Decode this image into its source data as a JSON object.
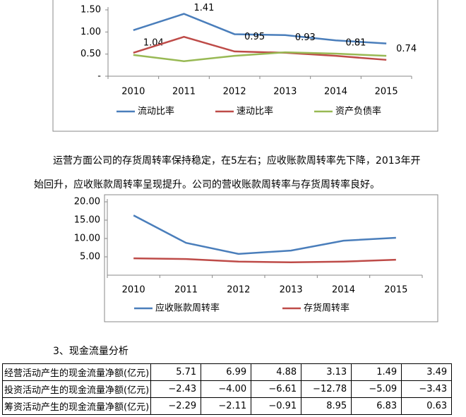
{
  "chart_data": [
    {
      "type": "line",
      "categories": [
        "2010",
        "2011",
        "2012",
        "2013",
        "2014",
        "2015"
      ],
      "series": [
        {
          "name": "流动比率",
          "color": "#4a7ebb",
          "values": [
            1.04,
            1.41,
            0.95,
            0.93,
            0.81,
            0.74
          ],
          "show_values": true
        },
        {
          "name": "速动比率",
          "color": "#be4b48",
          "values": [
            0.53,
            0.89,
            0.56,
            0.53,
            0.46,
            0.37
          ]
        },
        {
          "name": "资产负债率",
          "color": "#98b954",
          "values": [
            0.48,
            0.34,
            0.46,
            0.54,
            0.51,
            0.46
          ]
        }
      ],
      "ylim": [
        0,
        1.5
      ],
      "yticks": [
        {
          "value": 0,
          "label": "-"
        },
        {
          "value": 0.5,
          "label": "0.50"
        },
        {
          "value": 1,
          "label": "1.00"
        },
        {
          "value": 1.5,
          "label": "1.50"
        }
      ],
      "grid": false,
      "legend": "bottom"
    },
    {
      "type": "line",
      "categories": [
        "2010",
        "2011",
        "2012",
        "2013",
        "2014",
        "2015"
      ],
      "series": [
        {
          "name": "应收账款周转率",
          "color": "#4a7ebb",
          "values": [
            16.3,
            8.8,
            5.8,
            6.7,
            9.4,
            10.2
          ]
        },
        {
          "name": "存货周转率",
          "color": "#be4b48",
          "values": [
            4.6,
            4.4,
            3.7,
            3.5,
            3.7,
            4.2
          ]
        }
      ],
      "ylim": [
        0,
        20
      ],
      "yticks": [
        {
          "value": 5,
          "label": "5.00"
        },
        {
          "value": 10,
          "label": "10.00"
        },
        {
          "value": 15,
          "label": "15.00"
        },
        {
          "value": 20,
          "label": "20.00"
        }
      ],
      "grid": false,
      "legend": "bottom"
    }
  ],
  "paragraph": {
    "lines": [
      "运营方面公司的存货周转率保持稳定，在5左右；应收账款周转率先下降，2013年开",
      "始回升，应收账款周转率呈现提升。公司的营收账款周转率与存货周转率良好。"
    ]
  },
  "heading": "3、现金流量分析",
  "table": {
    "rows": [
      [
        "经营活动产生的现金流量净额(亿元)",
        "5.71",
        "6.99",
        "4.88",
        "3.13",
        "1.49",
        "3.49"
      ],
      [
        "投资活动产生的现金流量净额(亿元)",
        "−2.43",
        "−4.00",
        "−6.61",
        "−12.78",
        "−5.09",
        "−3.43"
      ],
      [
        "筹资活动产生的现金流量净额(亿元)",
        "−2.29",
        "−2.11",
        "−0.91",
        "8.95",
        "6.83",
        "0.63"
      ]
    ]
  }
}
